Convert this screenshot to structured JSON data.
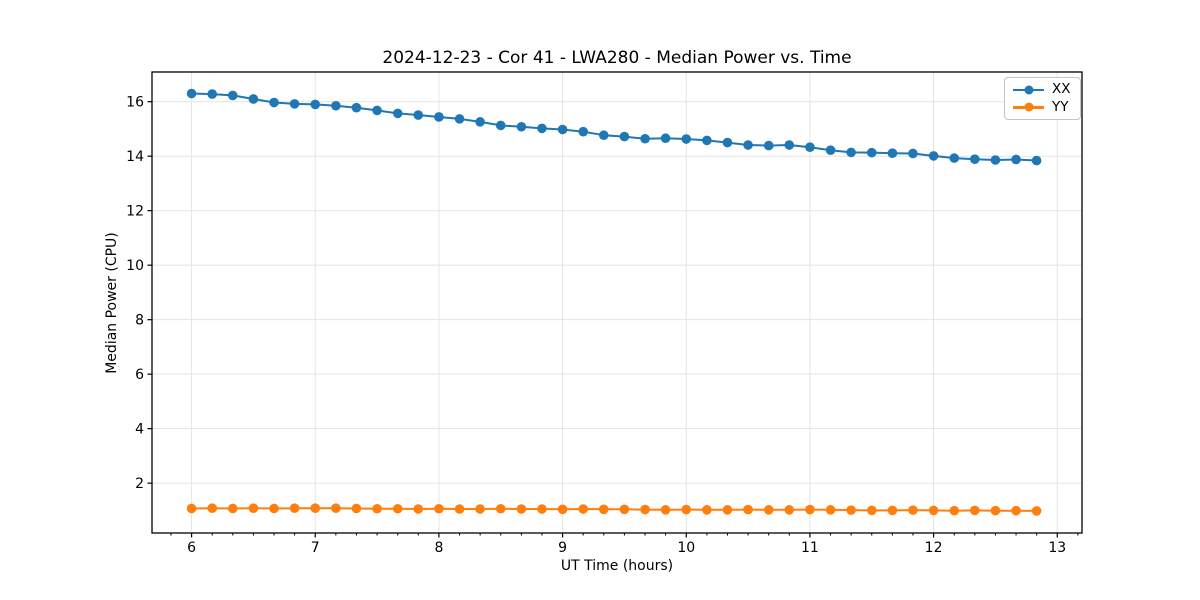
{
  "figure": {
    "title": "2024-12-23 - Cor 41 - LWA280 - Median Power vs. Time",
    "xlabel": "UT Time (hours)",
    "ylabel": "Median Power (CPU)"
  },
  "chart_data": {
    "type": "line",
    "title": "2024-12-23 - Cor 41 - LWA280 - Median Power vs. Time",
    "xlabel": "UT Time (hours)",
    "ylabel": "Median Power (CPU)",
    "xlim": [
      5.68,
      13.2
    ],
    "ylim": [
      0.17,
      17.09
    ],
    "x_ticks": [
      6,
      7,
      8,
      9,
      10,
      11,
      12,
      13
    ],
    "y_ticks": [
      2,
      4,
      6,
      8,
      10,
      12,
      14,
      16
    ],
    "x_minor_per_unit": 6,
    "grid": true,
    "grid_color": "#e4e4e4",
    "legend_position": "upper right",
    "x": [
      6.0,
      6.167,
      6.333,
      6.5,
      6.667,
      6.833,
      7.0,
      7.167,
      7.333,
      7.5,
      7.667,
      7.833,
      8.0,
      8.167,
      8.333,
      8.5,
      8.667,
      8.833,
      9.0,
      9.167,
      9.333,
      9.5,
      9.667,
      9.833,
      10.0,
      10.167,
      10.333,
      10.5,
      10.667,
      10.833,
      11.0,
      11.167,
      11.333,
      11.5,
      11.667,
      11.833,
      12.0,
      12.167,
      12.333,
      12.5,
      12.667,
      12.833
    ],
    "series": [
      {
        "name": "XX",
        "color": "#1f77b4",
        "marker": "circle",
        "values": [
          16.3,
          16.28,
          16.23,
          16.1,
          15.97,
          15.92,
          15.9,
          15.85,
          15.78,
          15.68,
          15.57,
          15.51,
          15.44,
          15.37,
          15.26,
          15.13,
          15.08,
          15.02,
          14.98,
          14.9,
          14.77,
          14.72,
          14.64,
          14.66,
          14.63,
          14.58,
          14.5,
          14.41,
          14.39,
          14.41,
          14.33,
          14.22,
          14.14,
          14.13,
          14.11,
          14.1,
          14.01,
          13.93,
          13.89,
          13.86,
          13.88,
          13.84
        ]
      },
      {
        "name": "YY",
        "color": "#ff7f0e",
        "marker": "circle",
        "values": [
          1.07,
          1.08,
          1.07,
          1.08,
          1.07,
          1.08,
          1.08,
          1.08,
          1.07,
          1.06,
          1.06,
          1.05,
          1.06,
          1.05,
          1.05,
          1.06,
          1.05,
          1.05,
          1.04,
          1.05,
          1.04,
          1.04,
          1.03,
          1.02,
          1.03,
          1.02,
          1.02,
          1.03,
          1.02,
          1.02,
          1.03,
          1.02,
          1.01,
          1.0,
          1.0,
          1.01,
          1.0,
          0.99,
          1.0,
          0.99,
          0.99,
          0.98
        ]
      }
    ]
  }
}
